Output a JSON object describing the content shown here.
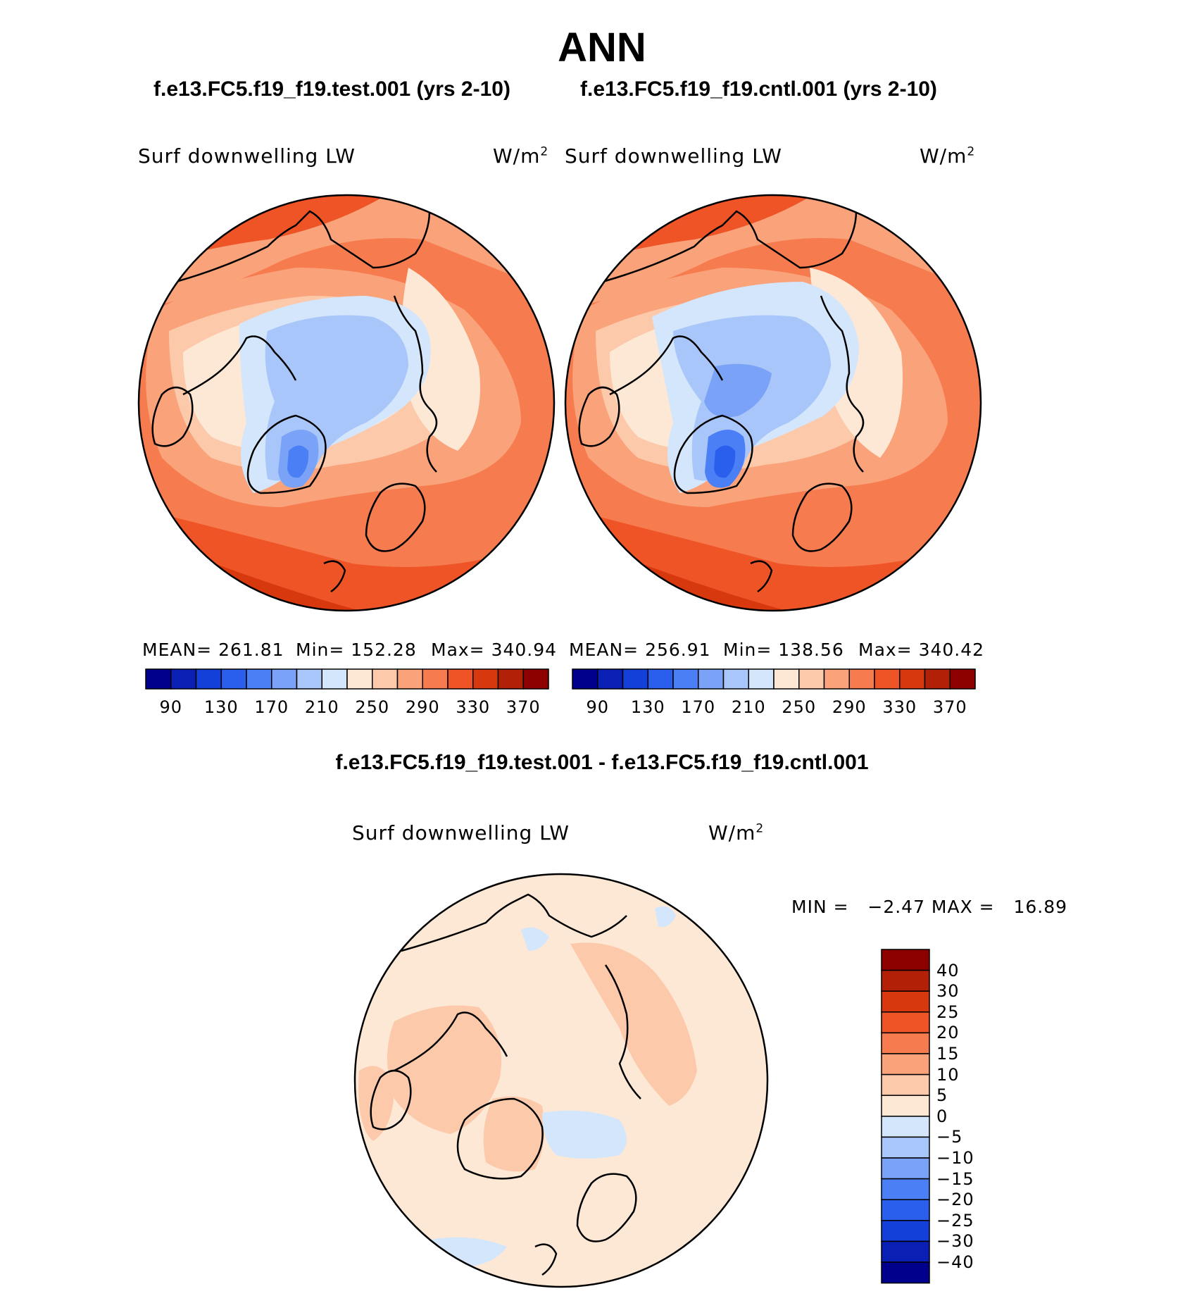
{
  "figure": {
    "title": "ANN"
  },
  "panels": [
    {
      "case": "f.e13.FC5.f19_f19.test.001 (yrs 2-10)",
      "variable": "Surf downwelling LW",
      "units": "W/m",
      "units_sup": "2",
      "stats": {
        "mean": "261.81",
        "min": "152.28",
        "max": "340.94"
      },
      "stats_text": {
        "mean": "MEAN= 261.81",
        "min": "Min= 152.28",
        "max": "Max= 340.94"
      }
    },
    {
      "case": "f.e13.FC5.f19_f19.cntl.001 (yrs 2-10)",
      "variable": "Surf downwelling LW",
      "units": "W/m",
      "units_sup": "2",
      "stats": {
        "mean": "256.91",
        "min": "138.56",
        "max": "340.42"
      },
      "stats_text": {
        "mean": "MEAN= 256.91",
        "min": "Min= 138.56",
        "max": "Max= 340.42"
      }
    }
  ],
  "abs_colorbar": {
    "ticks": [
      "90",
      "130",
      "170",
      "210",
      "250",
      "290",
      "330",
      "370"
    ],
    "colors": [
      "#00008c",
      "#0a1fb4",
      "#1240d8",
      "#2a5fed",
      "#4b7ff5",
      "#7aa3f7",
      "#a9c6fa",
      "#d3e6fb",
      "#fde8d6",
      "#fcc9aa",
      "#faa27a",
      "#f67b4f",
      "#ee5426",
      "#d8380e",
      "#b22008",
      "#8c0000"
    ]
  },
  "difference": {
    "title": "f.e13.FC5.f19_f19.test.001 - f.e13.FC5.f19_f19.cntl.001",
    "variable": "Surf downwelling LW",
    "units": "W/m",
    "units_sup": "2",
    "minmax_text": "MIN =   −2.47 MAX =   16.89",
    "stats": {
      "min": "-2.47",
      "max": "16.89"
    },
    "colorbar": {
      "labels": [
        "40",
        "30",
        "25",
        "20",
        "15",
        "10",
        "5",
        "0",
        "−5",
        "−10",
        "−15",
        "−20",
        "−25",
        "−30",
        "−40"
      ],
      "colors": [
        "#8c0000",
        "#b22008",
        "#d8380e",
        "#ee5426",
        "#f67b4f",
        "#faa27a",
        "#fcc9aa",
        "#fde8d6",
        "#d3e6fb",
        "#a9c6fa",
        "#7aa3f7",
        "#4b7ff5",
        "#2a5fed",
        "#1240d8",
        "#0a1fb4",
        "#00008c"
      ]
    }
  }
}
